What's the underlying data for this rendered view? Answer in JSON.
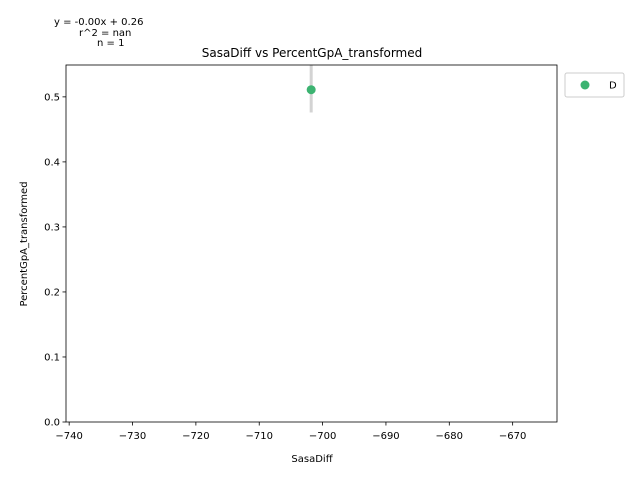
{
  "chart_data": {
    "type": "scatter",
    "title": "SasaDiff vs PercentGpA_transformed",
    "xlabel": "SasaDiff",
    "ylabel": "PercentGpA_transformed",
    "xlim": [
      -740.5,
      -663
    ],
    "ylim": [
      0,
      0.549
    ],
    "xticks": [
      -740,
      -730,
      -720,
      -710,
      -700,
      -690,
      -680,
      -670
    ],
    "xtick_labels": [
      "−740",
      "−730",
      "−720",
      "−710",
      "−700",
      "−690",
      "−680",
      "−670"
    ],
    "yticks": [
      0.0,
      0.1,
      0.2,
      0.3,
      0.4,
      0.5
    ],
    "ytick_labels": [
      "0.0",
      "0.1",
      "0.2",
      "0.3",
      "0.4",
      "0.5"
    ],
    "grid": false,
    "legend_position": "outside-top-right",
    "series": [
      {
        "name": "D",
        "color": "#3cb371",
        "points": [
          {
            "x": -701.8,
            "y": 0.511,
            "error_low": 0.476,
            "error_high": 0.549
          }
        ]
      }
    ],
    "error_bar_color": "#d3d3d3",
    "annotations": [
      "y = -0.00x + 0.26",
      "r^2 = nan",
      "n = 1"
    ]
  }
}
